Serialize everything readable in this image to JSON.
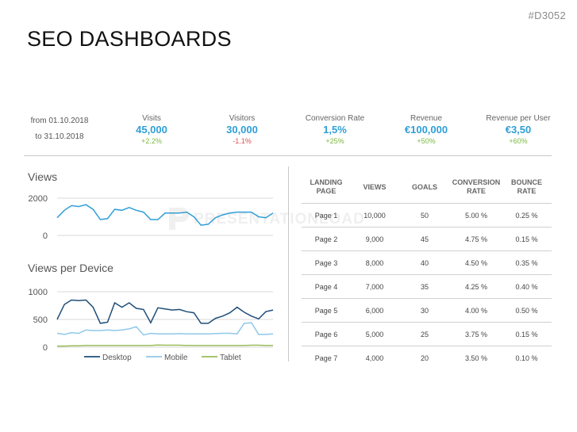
{
  "slide_id": "#D3052",
  "title": "SEO DASHBOARDS",
  "period": {
    "from": "from 01.10.2018",
    "to": "to 31.10.2018"
  },
  "kpis": [
    {
      "label": "Visits",
      "value": "45,000",
      "change": "+2.2%",
      "trend": "up"
    },
    {
      "label": "Visitors",
      "value": "30,000",
      "change": "-1.1%",
      "trend": "down"
    },
    {
      "label": "Conversion Rate",
      "value": "1,5%",
      "change": "+25%",
      "trend": "up"
    },
    {
      "label": "Revenue",
      "value": "€100,000",
      "change": "+50%",
      "trend": "up"
    },
    {
      "label": "Revenue per User",
      "value": "€3,50",
      "change": "+60%",
      "trend": "up"
    }
  ],
  "colors": {
    "accent": "#2f9fd7",
    "positive": "#7ab83f",
    "negative": "#d9534f",
    "desktop": "#1f4e79",
    "mobile": "#8fc8ea",
    "tablet": "#9bbb59"
  },
  "watermark": "PRESENTATIONLOAD",
  "chart_data": [
    {
      "type": "line",
      "title": "Views",
      "ylim": [
        0,
        2000
      ],
      "yticks": [
        0,
        2000
      ],
      "grid": true,
      "series": [
        {
          "values": [
            950,
            1350,
            1600,
            1550,
            1650,
            1400,
            850,
            900,
            1400,
            1350,
            1500,
            1350,
            1250,
            850,
            850,
            1200,
            1200,
            1200,
            1250,
            1000,
            550,
            600,
            950,
            1100,
            1200,
            1250,
            1250,
            1250,
            1000,
            950,
            1200
          ]
        }
      ]
    },
    {
      "type": "line",
      "title": "Views per Device",
      "ylim": [
        0,
        1000
      ],
      "yticks": [
        0,
        500,
        1000
      ],
      "grid": true,
      "legend": "bottom",
      "series": [
        {
          "name": "Desktop",
          "values": [
            500,
            770,
            850,
            840,
            850,
            720,
            430,
            450,
            800,
            720,
            800,
            700,
            680,
            440,
            710,
            690,
            670,
            680,
            640,
            620,
            430,
            430,
            520,
            560,
            620,
            720,
            630,
            560,
            510,
            640,
            670
          ]
        },
        {
          "name": "Mobile",
          "values": [
            250,
            230,
            260,
            250,
            310,
            300,
            300,
            310,
            300,
            310,
            330,
            370,
            220,
            250,
            240,
            240,
            240,
            245,
            240,
            240,
            240,
            240,
            245,
            250,
            250,
            240,
            430,
            440,
            230,
            230,
            240
          ]
        },
        {
          "name": "Tablet",
          "values": [
            20,
            20,
            25,
            25,
            30,
            30,
            30,
            30,
            30,
            30,
            30,
            30,
            30,
            30,
            40,
            35,
            35,
            35,
            30,
            30,
            30,
            30,
            30,
            30,
            30,
            30,
            30,
            35,
            35,
            30,
            30
          ]
        }
      ]
    }
  ],
  "table": {
    "headers": [
      "LANDING PAGE",
      "VIEWS",
      "GOALS",
      "CONVERSION RATE",
      "BOUNCE RATE"
    ],
    "rows": [
      [
        "Page 1",
        "10,000",
        "50",
        "5.00  %",
        "0.25 %"
      ],
      [
        "Page 2",
        "9,000",
        "45",
        "4.75 %",
        "0.15 %"
      ],
      [
        "Page 3",
        "8,000",
        "40",
        "4.50 %",
        "0.35 %"
      ],
      [
        "Page 4",
        "7,000",
        "35",
        "4.25 %",
        "0.40 %"
      ],
      [
        "Page 5",
        "6,000",
        "30",
        "4.00 %",
        "0.50 %"
      ],
      [
        "Page 6",
        "5,000",
        "25",
        "3.75 %",
        "0.15 %"
      ],
      [
        "Page 7",
        "4,000",
        "20",
        "3.50 %",
        "0.10 %"
      ]
    ]
  }
}
